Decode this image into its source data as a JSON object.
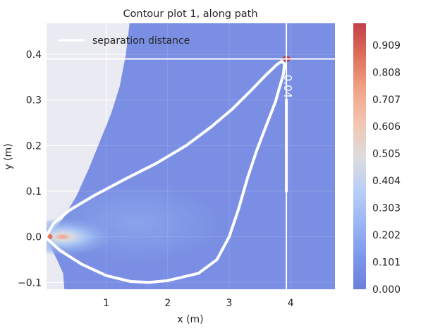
{
  "chart_data": {
    "type": "contour",
    "title": "Contour plot 1, along path",
    "xlabel": "x (m)",
    "ylabel": "y (m)",
    "xlim": [
      0.03,
      4.72
    ],
    "ylim": [
      -0.115,
      0.468
    ],
    "x_ticks": [
      1,
      2,
      3,
      4
    ],
    "y_ticks": [
      -0.1,
      0.0,
      0.1,
      0.2,
      0.3,
      0.4
    ],
    "x_tick_labels": [
      "1",
      "2",
      "3",
      "4"
    ],
    "y_tick_labels": [
      "−0.1",
      "0.0",
      "0.1",
      "0.2",
      "0.3",
      "0.4"
    ],
    "grid": true,
    "colormap": "coolwarm",
    "colorbar": {
      "min": 0.0,
      "max": 0.99,
      "ticks": [
        0.0,
        0.101,
        0.202,
        0.303,
        0.404,
        0.505,
        0.606,
        0.707,
        0.808,
        0.909
      ],
      "tick_labels": [
        "0.000",
        "0.101",
        "0.202",
        "0.303",
        "0.404",
        "0.505",
        "0.606",
        "0.707",
        "0.808",
        "0.909"
      ]
    },
    "field_boundary": [
      [
        0.03,
        -0.115
      ],
      [
        4.72,
        -0.115
      ],
      [
        4.72,
        0.468
      ],
      [
        1.38,
        0.468
      ],
      [
        1.32,
        0.4
      ],
      [
        1.22,
        0.33
      ],
      [
        1.08,
        0.27
      ],
      [
        0.9,
        0.21
      ],
      [
        0.72,
        0.15
      ],
      [
        0.52,
        0.09
      ],
      [
        0.3,
        0.04
      ],
      [
        0.06,
        0.0
      ],
      [
        0.03,
        -0.005
      ],
      [
        0.2,
        -0.05
      ],
      [
        0.3,
        -0.08
      ],
      [
        0.32,
        -0.115
      ]
    ],
    "source": {
      "x": 0.06,
      "y": 0.0,
      "peak": 0.9
    },
    "hotspot": {
      "x": 3.93,
      "y": 0.39,
      "peak": 0.99
    },
    "legend": {
      "placement": "upper-left",
      "entries": [
        "separation distance"
      ]
    },
    "series": [
      {
        "name": "separation distance",
        "color": "#ffffff",
        "points": [
          [
            0.03,
            0.003
          ],
          [
            0.15,
            0.03
          ],
          [
            0.4,
            0.058
          ],
          [
            0.8,
            0.09
          ],
          [
            1.3,
            0.126
          ],
          [
            1.8,
            0.16
          ],
          [
            2.3,
            0.2
          ],
          [
            2.7,
            0.24
          ],
          [
            3.05,
            0.28
          ],
          [
            3.35,
            0.32
          ],
          [
            3.6,
            0.355
          ],
          [
            3.78,
            0.378
          ],
          [
            3.86,
            0.385
          ],
          [
            3.9,
            0.378
          ],
          [
            3.88,
            0.355
          ],
          [
            3.82,
            0.328
          ],
          [
            3.75,
            0.295
          ],
          [
            3.62,
            0.25
          ],
          [
            3.45,
            0.19
          ],
          [
            3.3,
            0.13
          ],
          [
            3.15,
            0.06
          ],
          [
            3.0,
            0.0
          ],
          [
            2.8,
            -0.05
          ],
          [
            2.5,
            -0.08
          ],
          [
            2.0,
            -0.096
          ],
          [
            1.7,
            -0.1
          ],
          [
            1.4,
            -0.098
          ],
          [
            1.0,
            -0.085
          ],
          [
            0.6,
            -0.06
          ],
          [
            0.25,
            -0.03
          ],
          [
            0.03,
            -0.003
          ]
        ]
      },
      {
        "name": "",
        "color": "#ffffff",
        "points": [
          [
            3.93,
            0.3
          ],
          [
            3.93,
            0.2
          ],
          [
            3.93,
            0.1
          ]
        ]
      }
    ],
    "crosshair": {
      "x": 3.93,
      "y": 0.39,
      "color": "#ffffff"
    },
    "annotations": [
      {
        "text": "0.04",
        "x": 3.95,
        "y": 0.34,
        "rotation_deg": 90
      }
    ]
  }
}
